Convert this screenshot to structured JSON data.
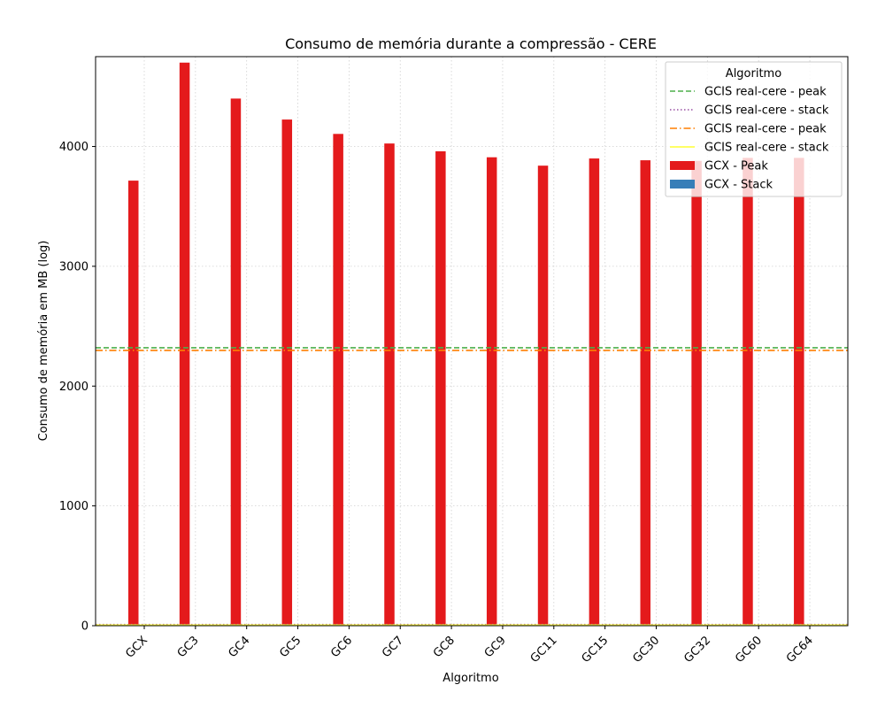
{
  "chart_data": {
    "type": "bar",
    "title": "Consumo de memória durante a compressão -  CERE",
    "xlabel": "Algoritmo",
    "ylabel": "Consumo de memória em MB (log)",
    "ylim": [
      0,
      4750
    ],
    "yticks": [
      0,
      1000,
      2000,
      3000,
      4000
    ],
    "categories": [
      "GCX",
      "GC3",
      "GC4",
      "GC5",
      "GC6",
      "GC7",
      "GC8",
      "GC9",
      "GC11",
      "GC15",
      "GC30",
      "GC32",
      "GC60",
      "GC64"
    ],
    "series": [
      {
        "name": "GCX - Peak",
        "color": "#e41a1c",
        "values": [
          3715,
          4700,
          4400,
          4225,
          4105,
          4025,
          3960,
          3910,
          3840,
          3900,
          3885,
          3880,
          3905,
          3905
        ]
      },
      {
        "name": "GCX - Stack",
        "color": "#377eb8",
        "values": [
          0,
          0,
          0,
          0,
          0,
          0,
          0,
          0,
          0,
          0,
          0,
          0,
          0,
          0
        ]
      }
    ],
    "reference_lines": [
      {
        "name": "GCIS real-cere - peak",
        "value": 2320,
        "color": "#4daf4a",
        "style": "dashed"
      },
      {
        "name": "GCIS real-cere - stack",
        "value": 10,
        "color": "#984ea3",
        "style": "dotted"
      },
      {
        "name": "GCIS real-cere - peak",
        "value": 2298,
        "color": "#ff7f00",
        "style": "dashdot"
      },
      {
        "name": "GCIS real-cere - stack",
        "value": 5,
        "color": "#ffff33",
        "style": "solid"
      }
    ],
    "legend": {
      "title": "Algoritmo",
      "position": "top-right",
      "entries": [
        {
          "label": "GCIS real-cere - peak",
          "kind": "line",
          "color": "#4daf4a",
          "style": "dashed"
        },
        {
          "label": "GCIS real-cere - stack",
          "kind": "line",
          "color": "#984ea3",
          "style": "dotted"
        },
        {
          "label": "GCIS real-cere - peak",
          "kind": "line",
          "color": "#ff7f00",
          "style": "dashdot"
        },
        {
          "label": "GCIS real-cere - stack",
          "kind": "line",
          "color": "#ffff33",
          "style": "solid"
        },
        {
          "label": "GCX - Peak",
          "kind": "patch",
          "color": "#e41a1c"
        },
        {
          "label": "GCX - Stack",
          "kind": "patch",
          "color": "#377eb8"
        }
      ]
    },
    "grid": true
  }
}
